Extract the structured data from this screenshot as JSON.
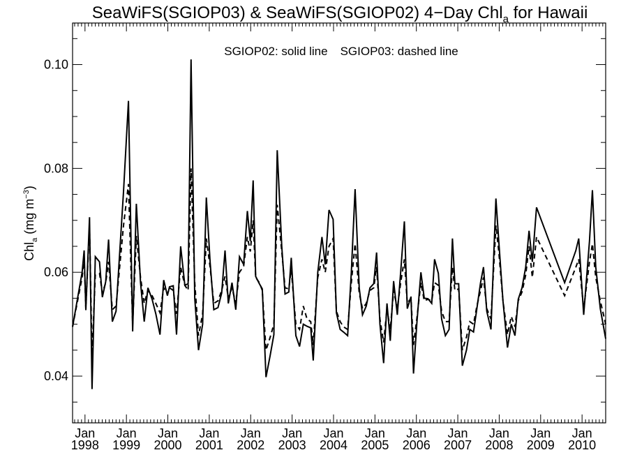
{
  "chart_data": {
    "type": "line",
    "title_main": "SeaWiFS(SGIOP03) & SeaWiFS(SGIOP02) 4−Day Chl",
    "title_sub": "a",
    "title_tail": " for Hawaii",
    "ylabel_main": "Chl",
    "ylabel_sub": "a",
    "ylabel_units_pre": " (mg m",
    "ylabel_units_sup": "−3",
    "ylabel_units_post": ")",
    "legend_solid": "SGIOP02: solid line",
    "legend_dashed": "SGIOP03: dashed line",
    "ylim": [
      0.031,
      0.108
    ],
    "xlim": [
      1997.7,
      2010.57
    ],
    "yticks": [
      0.04,
      0.06,
      0.08,
      0.1
    ],
    "ytick_labels": [
      "0.04",
      "0.06",
      "0.08",
      "0.10"
    ],
    "xticks": [
      {
        "x": 1998.0,
        "month": "Jan",
        "year": "1998"
      },
      {
        "x": 1999.0,
        "month": "Jan",
        "year": "1999"
      },
      {
        "x": 2000.0,
        "month": "Jan",
        "year": "2000"
      },
      {
        "x": 2001.0,
        "month": "Jan",
        "year": "2001"
      },
      {
        "x": 2002.0,
        "month": "Jan",
        "year": "2002"
      },
      {
        "x": 2003.0,
        "month": "Jan",
        "year": "2003"
      },
      {
        "x": 2004.0,
        "month": "Jan",
        "year": "2004"
      },
      {
        "x": 2005.0,
        "month": "Jan",
        "year": "2005"
      },
      {
        "x": 2006.0,
        "month": "Jan",
        "year": "2006"
      },
      {
        "x": 2007.0,
        "month": "Jan",
        "year": "2007"
      },
      {
        "x": 2008.0,
        "month": "Jan",
        "year": "2008"
      },
      {
        "x": 2009.0,
        "month": "Jan",
        "year": "2009"
      },
      {
        "x": 2010.0,
        "month": "Jan",
        "year": "2010"
      }
    ],
    "series": [
      {
        "style": "solid",
        "points": [
          [
            1997.7,
            0.0495
          ],
          [
            1997.93,
            0.06
          ],
          [
            1997.98,
            0.0642
          ],
          [
            1998.02,
            0.0527
          ],
          [
            1998.11,
            0.0706
          ],
          [
            1998.17,
            0.0375
          ],
          [
            1998.25,
            0.063
          ],
          [
            1998.35,
            0.062
          ],
          [
            1998.42,
            0.0552
          ],
          [
            1998.5,
            0.0582
          ],
          [
            1998.57,
            0.0663
          ],
          [
            1998.66,
            0.0505
          ],
          [
            1998.75,
            0.0525
          ],
          [
            1998.93,
            0.0755
          ],
          [
            1999.05,
            0.093
          ],
          [
            1999.15,
            0.0486
          ],
          [
            1999.24,
            0.0732
          ],
          [
            1999.34,
            0.058
          ],
          [
            1999.43,
            0.0505
          ],
          [
            1999.52,
            0.057
          ],
          [
            1999.62,
            0.0548
          ],
          [
            1999.71,
            0.052
          ],
          [
            1999.81,
            0.048
          ],
          [
            1999.9,
            0.0585
          ],
          [
            1999.99,
            0.0555
          ],
          [
            2000.04,
            0.0572
          ],
          [
            2000.13,
            0.0574
          ],
          [
            2000.21,
            0.048
          ],
          [
            2000.31,
            0.065
          ],
          [
            2000.41,
            0.0575
          ],
          [
            2000.49,
            0.0578
          ],
          [
            2000.56,
            0.101
          ],
          [
            2000.65,
            0.055
          ],
          [
            2000.74,
            0.045
          ],
          [
            2000.84,
            0.05
          ],
          [
            2000.93,
            0.0744
          ],
          [
            2001.02,
            0.062
          ],
          [
            2001.11,
            0.0528
          ],
          [
            2001.21,
            0.0532
          ],
          [
            2001.3,
            0.056
          ],
          [
            2001.38,
            0.0642
          ],
          [
            2001.46,
            0.054
          ],
          [
            2001.55,
            0.058
          ],
          [
            2001.64,
            0.0528
          ],
          [
            2001.73,
            0.063
          ],
          [
            2001.83,
            0.0615
          ],
          [
            2001.92,
            0.0718
          ],
          [
            2001.99,
            0.066
          ],
          [
            2002.06,
            0.0777
          ],
          [
            2002.12,
            0.0592
          ],
          [
            2002.21,
            0.0578
          ],
          [
            2002.28,
            0.0568
          ],
          [
            2002.37,
            0.0398
          ],
          [
            2002.47,
            0.044
          ],
          [
            2002.56,
            0.048
          ],
          [
            2002.64,
            0.0835
          ],
          [
            2002.75,
            0.065
          ],
          [
            2002.83,
            0.0558
          ],
          [
            2002.92,
            0.0562
          ],
          [
            2002.98,
            0.0628
          ],
          [
            2003.09,
            0.0478
          ],
          [
            2003.18,
            0.0457
          ],
          [
            2003.27,
            0.05
          ],
          [
            2003.36,
            0.0496
          ],
          [
            2003.45,
            0.0493
          ],
          [
            2003.51,
            0.043
          ],
          [
            2003.62,
            0.06
          ],
          [
            2003.72,
            0.0668
          ],
          [
            2003.8,
            0.0615
          ],
          [
            2003.89,
            0.072
          ],
          [
            2003.99,
            0.0702
          ],
          [
            2004.07,
            0.0522
          ],
          [
            2004.16,
            0.049
          ],
          [
            2004.24,
            0.0485
          ],
          [
            2004.34,
            0.0478
          ],
          [
            2004.43,
            0.06
          ],
          [
            2004.52,
            0.076
          ],
          [
            2004.62,
            0.057
          ],
          [
            2004.7,
            0.0518
          ],
          [
            2004.79,
            0.0535
          ],
          [
            2004.88,
            0.057
          ],
          [
            2004.97,
            0.0578
          ],
          [
            2005.04,
            0.0638
          ],
          [
            2005.12,
            0.05
          ],
          [
            2005.21,
            0.0425
          ],
          [
            2005.29,
            0.054
          ],
          [
            2005.37,
            0.0468
          ],
          [
            2005.45,
            0.0583
          ],
          [
            2005.54,
            0.0518
          ],
          [
            2005.62,
            0.06
          ],
          [
            2005.71,
            0.0698
          ],
          [
            2005.78,
            0.053
          ],
          [
            2005.87,
            0.0553
          ],
          [
            2005.93,
            0.0405
          ],
          [
            2006.01,
            0.05
          ],
          [
            2006.11,
            0.06
          ],
          [
            2006.19,
            0.055
          ],
          [
            2006.28,
            0.0549
          ],
          [
            2006.37,
            0.054
          ],
          [
            2006.44,
            0.0625
          ],
          [
            2006.53,
            0.0598
          ],
          [
            2006.61,
            0.051
          ],
          [
            2006.7,
            0.0478
          ],
          [
            2006.79,
            0.049
          ],
          [
            2006.87,
            0.0665
          ],
          [
            2006.93,
            0.0578
          ],
          [
            2007.02,
            0.0578
          ],
          [
            2007.11,
            0.042
          ],
          [
            2007.21,
            0.045
          ],
          [
            2007.29,
            0.049
          ],
          [
            2007.38,
            0.0485
          ],
          [
            2007.46,
            0.053
          ],
          [
            2007.55,
            0.058
          ],
          [
            2007.62,
            0.061
          ],
          [
            2007.7,
            0.0525
          ],
          [
            2007.8,
            0.049
          ],
          [
            2007.92,
            0.0742
          ],
          [
            2007.99,
            0.066
          ],
          [
            2008.09,
            0.0545
          ],
          [
            2008.2,
            0.0455
          ],
          [
            2008.29,
            0.05
          ],
          [
            2008.38,
            0.0478
          ],
          [
            2008.46,
            0.0548
          ],
          [
            2008.55,
            0.057
          ],
          [
            2008.64,
            0.061
          ],
          [
            2008.72,
            0.068
          ],
          [
            2008.8,
            0.062
          ],
          [
            2008.9,
            0.0725
          ],
          [
            2009.58,
            0.058
          ],
          [
            2009.85,
            0.0642
          ],
          [
            2009.92,
            0.0665
          ],
          [
            2010.04,
            0.0518
          ],
          [
            2010.18,
            0.066
          ],
          [
            2010.25,
            0.0758
          ],
          [
            2010.33,
            0.061
          ],
          [
            2010.44,
            0.053
          ],
          [
            2010.57,
            0.0472
          ]
        ]
      },
      {
        "style": "dashed",
        "points": [
          [
            1997.7,
            0.0495
          ],
          [
            1997.93,
            0.059
          ],
          [
            1997.98,
            0.0628
          ],
          [
            1998.02,
            0.053
          ],
          [
            1998.11,
            0.069
          ],
          [
            1998.17,
            0.044
          ],
          [
            1998.25,
            0.0595
          ],
          [
            1998.35,
            0.0598
          ],
          [
            1998.42,
            0.056
          ],
          [
            1998.5,
            0.058
          ],
          [
            1998.57,
            0.062
          ],
          [
            1998.66,
            0.0528
          ],
          [
            1998.75,
            0.0535
          ],
          [
            1998.93,
            0.069
          ],
          [
            1999.05,
            0.077
          ],
          [
            1999.15,
            0.05
          ],
          [
            1999.24,
            0.067
          ],
          [
            1999.34,
            0.059
          ],
          [
            1999.43,
            0.054
          ],
          [
            1999.52,
            0.0565
          ],
          [
            1999.62,
            0.0555
          ],
          [
            1999.71,
            0.054
          ],
          [
            1999.81,
            0.0522
          ],
          [
            1999.9,
            0.057
          ],
          [
            1999.99,
            0.0558
          ],
          [
            2000.04,
            0.057
          ],
          [
            2000.13,
            0.0565
          ],
          [
            2000.21,
            0.052
          ],
          [
            2000.31,
            0.061
          ],
          [
            2000.41,
            0.0575
          ],
          [
            2000.49,
            0.0565
          ],
          [
            2000.56,
            0.08
          ],
          [
            2000.65,
            0.058
          ],
          [
            2000.74,
            0.0478
          ],
          [
            2000.84,
            0.052
          ],
          [
            2000.93,
            0.0665
          ],
          [
            2001.02,
            0.061
          ],
          [
            2001.11,
            0.054
          ],
          [
            2001.21,
            0.0545
          ],
          [
            2001.3,
            0.0565
          ],
          [
            2001.38,
            0.0592
          ],
          [
            2001.46,
            0.055
          ],
          [
            2001.55,
            0.057
          ],
          [
            2001.64,
            0.054
          ],
          [
            2001.73,
            0.06
          ],
          [
            2001.83,
            0.0612
          ],
          [
            2001.92,
            0.0668
          ],
          [
            2001.99,
            0.064
          ],
          [
            2002.06,
            0.07
          ],
          [
            2002.12,
            0.059
          ],
          [
            2002.21,
            0.058
          ],
          [
            2002.28,
            0.0565
          ],
          [
            2002.37,
            0.045
          ],
          [
            2002.47,
            0.0475
          ],
          [
            2002.56,
            0.05
          ],
          [
            2002.64,
            0.073
          ],
          [
            2002.75,
            0.064
          ],
          [
            2002.83,
            0.057
          ],
          [
            2002.92,
            0.0568
          ],
          [
            2002.98,
            0.0605
          ],
          [
            2003.09,
            0.05
          ],
          [
            2003.18,
            0.049
          ],
          [
            2003.27,
            0.0535
          ],
          [
            2003.36,
            0.051
          ],
          [
            2003.45,
            0.0505
          ],
          [
            2003.51,
            0.046
          ],
          [
            2003.62,
            0.059
          ],
          [
            2003.72,
            0.0625
          ],
          [
            2003.8,
            0.06
          ],
          [
            2003.89,
            0.065
          ],
          [
            2003.99,
            0.0665
          ],
          [
            2004.07,
            0.0525
          ],
          [
            2004.16,
            0.0505
          ],
          [
            2004.24,
            0.0495
          ],
          [
            2004.34,
            0.049
          ],
          [
            2004.43,
            0.058
          ],
          [
            2004.52,
            0.0655
          ],
          [
            2004.62,
            0.056
          ],
          [
            2004.7,
            0.053
          ],
          [
            2004.79,
            0.054
          ],
          [
            2004.88,
            0.0565
          ],
          [
            2004.97,
            0.057
          ],
          [
            2005.04,
            0.061
          ],
          [
            2005.12,
            0.051
          ],
          [
            2005.21,
            0.0465
          ],
          [
            2005.29,
            0.053
          ],
          [
            2005.37,
            0.049
          ],
          [
            2005.45,
            0.0565
          ],
          [
            2005.54,
            0.053
          ],
          [
            2005.62,
            0.058
          ],
          [
            2005.71,
            0.0625
          ],
          [
            2005.78,
            0.054
          ],
          [
            2005.87,
            0.055
          ],
          [
            2005.93,
            0.046
          ],
          [
            2006.01,
            0.051
          ],
          [
            2006.11,
            0.058
          ],
          [
            2006.19,
            0.0545
          ],
          [
            2006.28,
            0.0548
          ],
          [
            2006.37,
            0.0545
          ],
          [
            2006.44,
            0.058
          ],
          [
            2006.53,
            0.0575
          ],
          [
            2006.61,
            0.0525
          ],
          [
            2006.7,
            0.0505
          ],
          [
            2006.79,
            0.0505
          ],
          [
            2006.87,
            0.061
          ],
          [
            2006.93,
            0.0565
          ],
          [
            2007.02,
            0.0568
          ],
          [
            2007.11,
            0.045
          ],
          [
            2007.21,
            0.0475
          ],
          [
            2007.29,
            0.0505
          ],
          [
            2007.38,
            0.05
          ],
          [
            2007.46,
            0.0535
          ],
          [
            2007.55,
            0.0565
          ],
          [
            2007.62,
            0.059
          ],
          [
            2007.7,
            0.053
          ],
          [
            2007.8,
            0.051
          ],
          [
            2007.92,
            0.069
          ],
          [
            2007.99,
            0.064
          ],
          [
            2008.09,
            0.0545
          ],
          [
            2008.2,
            0.048
          ],
          [
            2008.29,
            0.0515
          ],
          [
            2008.38,
            0.0495
          ],
          [
            2008.46,
            0.0545
          ],
          [
            2008.55,
            0.0562
          ],
          [
            2008.64,
            0.0595
          ],
          [
            2008.72,
            0.065
          ],
          [
            2008.8,
            0.059
          ],
          [
            2008.9,
            0.0668
          ],
          [
            2009.58,
            0.0555
          ],
          [
            2009.85,
            0.061
          ],
          [
            2009.92,
            0.0625
          ],
          [
            2010.04,
            0.053
          ],
          [
            2010.18,
            0.062
          ],
          [
            2010.25,
            0.0655
          ],
          [
            2010.33,
            0.059
          ],
          [
            2010.44,
            0.0545
          ],
          [
            2010.57,
            0.05
          ]
        ]
      }
    ]
  }
}
